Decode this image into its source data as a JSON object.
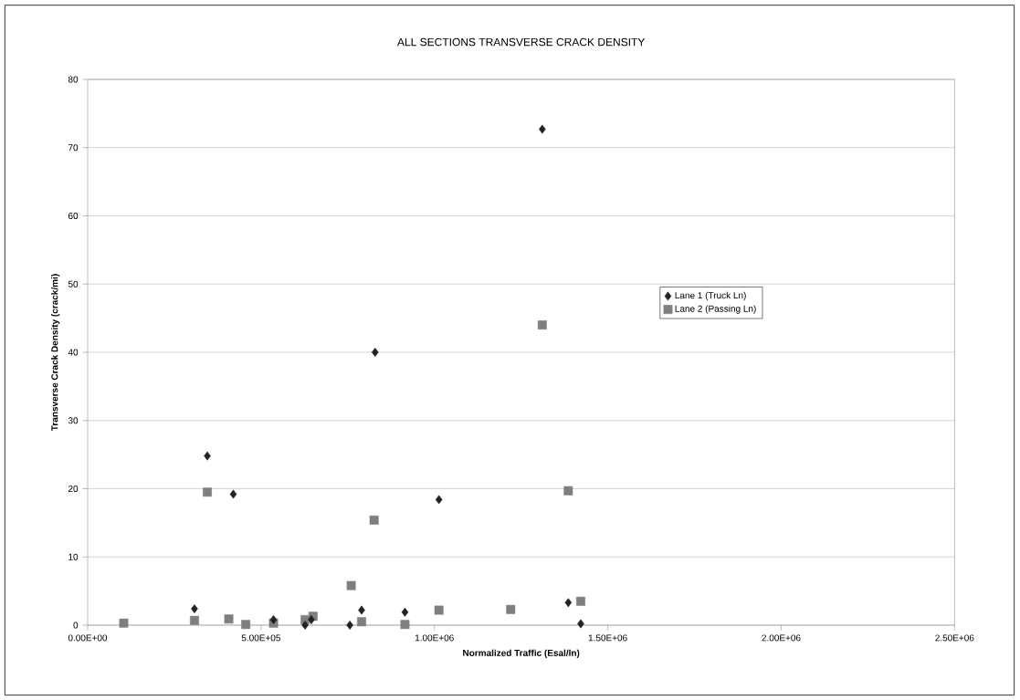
{
  "chart_data": {
    "type": "scatter",
    "title": "ALL SECTIONS TRANSVERSE CRACK DENSITY",
    "xlabel": "Normalized Traffic (Esal/ln)",
    "ylabel": "Transverse Crack Density (crack/mi)",
    "xlim": [
      0,
      2500000
    ],
    "ylim": [
      0,
      80
    ],
    "xticks": [
      {
        "value": 0,
        "label": "0.00E+00"
      },
      {
        "value": 500000,
        "label": "5.00E+05"
      },
      {
        "value": 1000000,
        "label": "1.00E+06"
      },
      {
        "value": 1500000,
        "label": "1.50E+06"
      },
      {
        "value": 2000000,
        "label": "2.00E+06"
      },
      {
        "value": 2500000,
        "label": "2.50E+06"
      }
    ],
    "yticks": [
      0,
      10,
      20,
      30,
      40,
      50,
      60,
      70,
      80
    ],
    "grid": "y",
    "legend": "right",
    "series": [
      {
        "name": "Lane 1 (Truck Ln)",
        "color": "#222222",
        "marker": "diamond",
        "x": [
          308000,
          345000,
          420000,
          536000,
          627000,
          645000,
          756000,
          790000,
          829000,
          915000,
          1013000,
          1311000,
          1386000,
          1422000
        ],
        "values": [
          2.4,
          24.8,
          19.2,
          0.8,
          0,
          0.8,
          0,
          2.2,
          40,
          1.9,
          18.4,
          72.7,
          3.3,
          0.2
        ]
      },
      {
        "name": "Lane 2 (Passing Ln)",
        "color": "#7f7f7f",
        "marker": "square",
        "x": [
          104000,
          308000,
          345000,
          400000,
          407000,
          456000,
          536000,
          627000,
          650000,
          760000,
          790000,
          826000,
          915000,
          1013000,
          1220000,
          1311000,
          1386000,
          1422000
        ],
        "values": [
          0.3,
          0.7,
          19.5,
          null,
          0.9,
          0.1,
          0.3,
          0.8,
          1.3,
          5.8,
          0.5,
          15.4,
          0.1,
          2.2,
          2.3,
          44,
          19.7,
          3.5
        ]
      }
    ]
  }
}
